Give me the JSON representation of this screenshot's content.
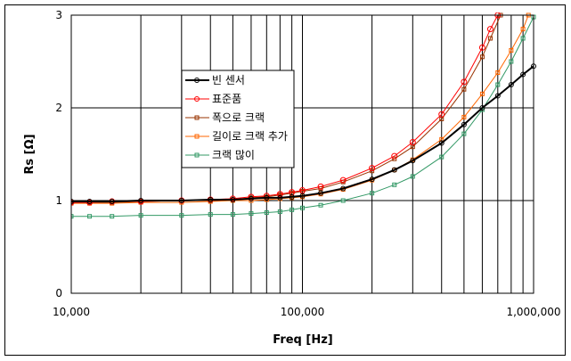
{
  "chart_data": {
    "type": "line",
    "title": "",
    "xlabel": "Freq [Hz]",
    "ylabel": "Rs [Ω]",
    "xscale": "log",
    "xlim": [
      10000,
      1000000
    ],
    "ylim": [
      0,
      3
    ],
    "x_ticks": [
      "10,000",
      "100,000",
      "1,000,000"
    ],
    "y_ticks": [
      "0",
      "1",
      "2",
      "3"
    ],
    "grid": true,
    "legend_position": "upper-left-inside",
    "series": [
      {
        "name": "빈 센서",
        "color": "#000000",
        "marker": "circle",
        "width": 2,
        "x": [
          10000,
          12000,
          15000,
          20000,
          30000,
          40000,
          50000,
          60000,
          70000,
          80000,
          90000,
          100000,
          120000,
          150000,
          200000,
          250000,
          300000,
          400000,
          500000,
          600000,
          700000,
          800000,
          900000,
          1000000
        ],
        "values": [
          0.99,
          0.99,
          0.99,
          1.0,
          1.0,
          1.01,
          1.01,
          1.02,
          1.03,
          1.03,
          1.04,
          1.05,
          1.08,
          1.13,
          1.23,
          1.33,
          1.43,
          1.62,
          1.82,
          2.0,
          2.13,
          2.25,
          2.36,
          2.45
        ]
      },
      {
        "name": "표준품",
        "color": "#ff0000",
        "marker": "circle",
        "width": 1,
        "x": [
          10000,
          12000,
          15000,
          20000,
          30000,
          40000,
          50000,
          60000,
          70000,
          80000,
          90000,
          100000,
          120000,
          150000,
          200000,
          250000,
          300000,
          400000,
          500000,
          600000,
          650000,
          700000
        ],
        "values": [
          0.98,
          0.98,
          0.99,
          0.99,
          1.0,
          1.01,
          1.02,
          1.04,
          1.05,
          1.07,
          1.09,
          1.11,
          1.15,
          1.22,
          1.35,
          1.48,
          1.63,
          1.93,
          2.28,
          2.65,
          2.85,
          3.0
        ]
      },
      {
        "name": "폭으로 크랙",
        "color": "#993300",
        "marker": "square",
        "width": 1,
        "x": [
          10000,
          12000,
          15000,
          20000,
          30000,
          40000,
          50000,
          60000,
          70000,
          80000,
          90000,
          100000,
          120000,
          150000,
          200000,
          250000,
          300000,
          400000,
          500000,
          600000,
          650000,
          720000
        ],
        "values": [
          0.98,
          0.98,
          0.98,
          0.99,
          1.0,
          1.0,
          1.01,
          1.03,
          1.04,
          1.06,
          1.08,
          1.1,
          1.13,
          1.2,
          1.32,
          1.45,
          1.58,
          1.88,
          2.2,
          2.55,
          2.75,
          3.0
        ]
      },
      {
        "name": "길이로 크랙 추가",
        "color": "#ff6600",
        "marker": "square",
        "width": 1,
        "x": [
          10000,
          12000,
          15000,
          20000,
          30000,
          40000,
          50000,
          60000,
          70000,
          80000,
          90000,
          100000,
          120000,
          150000,
          200000,
          250000,
          300000,
          400000,
          500000,
          600000,
          700000,
          800000,
          900000,
          950000
        ],
        "values": [
          0.97,
          0.97,
          0.97,
          0.98,
          0.98,
          0.99,
          1.0,
          1.0,
          1.01,
          1.02,
          1.03,
          1.04,
          1.07,
          1.12,
          1.22,
          1.33,
          1.44,
          1.66,
          1.9,
          2.15,
          2.38,
          2.62,
          2.85,
          3.0
        ]
      },
      {
        "name": "크랙 많이",
        "color": "#339966",
        "marker": "square",
        "width": 1,
        "x": [
          10000,
          12000,
          15000,
          20000,
          30000,
          40000,
          50000,
          60000,
          70000,
          80000,
          90000,
          100000,
          120000,
          150000,
          200000,
          250000,
          300000,
          400000,
          500000,
          600000,
          700000,
          800000,
          900000,
          1000000
        ],
        "values": [
          0.83,
          0.83,
          0.83,
          0.84,
          0.84,
          0.85,
          0.85,
          0.86,
          0.87,
          0.88,
          0.9,
          0.92,
          0.95,
          1.0,
          1.08,
          1.17,
          1.26,
          1.47,
          1.72,
          1.98,
          2.25,
          2.5,
          2.75,
          2.98
        ]
      }
    ]
  },
  "axes": {
    "xlabel": "Freq [Hz]",
    "ylabel": "Rs [Ω]",
    "x_ticks": [
      "10,000",
      "100,000",
      "1,000,000"
    ],
    "y_ticks": [
      "0",
      "1",
      "2",
      "3"
    ]
  }
}
